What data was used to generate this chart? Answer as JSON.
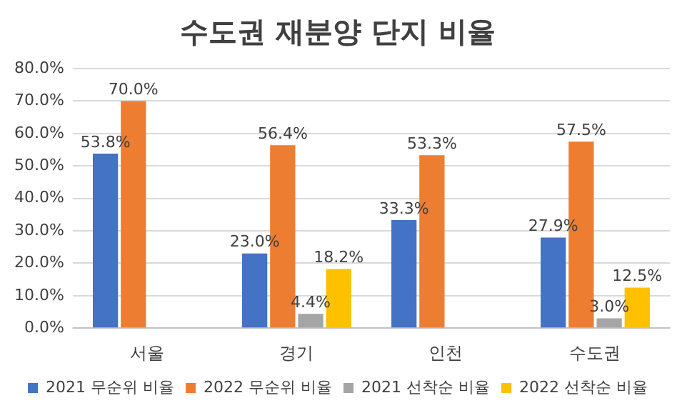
{
  "chart_data": {
    "type": "bar",
    "title": "수도권 재분양 단지 비율",
    "categories": [
      "서울",
      "경기",
      "인천",
      "수도권"
    ],
    "series": [
      {
        "name": "2021 무순위 비율",
        "color": "#4472c4",
        "values": [
          53.8,
          23.0,
          33.3,
          27.9
        ],
        "value_labels": [
          "53.8%",
          "23.0%",
          "33.3%",
          "27.9%"
        ]
      },
      {
        "name": "2022 무순위 비율",
        "color": "#ed7d31",
        "values": [
          70.0,
          56.4,
          53.3,
          57.5
        ],
        "value_labels": [
          "70.0%",
          "56.4%",
          "53.3%",
          "57.5%"
        ]
      },
      {
        "name": "2021 선착순 비율",
        "color": "#a5a5a5",
        "values": [
          null,
          4.4,
          null,
          3.0
        ],
        "value_labels": [
          null,
          "4.4%",
          null,
          "3.0%"
        ]
      },
      {
        "name": "2022 선착순 비율",
        "color": "#ffc000",
        "values": [
          null,
          18.2,
          null,
          12.5
        ],
        "value_labels": [
          null,
          "18.2%",
          null,
          "12.5%"
        ]
      }
    ],
    "ylim": [
      0,
      80
    ],
    "yticks": [
      {
        "value": 0,
        "label": "0.0%"
      },
      {
        "value": 10,
        "label": "10.0%"
      },
      {
        "value": 20,
        "label": "20.0%"
      },
      {
        "value": 30,
        "label": "30.0%"
      },
      {
        "value": 40,
        "label": "40.0%"
      },
      {
        "value": 50,
        "label": "50.0%"
      },
      {
        "value": 60,
        "label": "60.0%"
      },
      {
        "value": 70,
        "label": "70.0%"
      },
      {
        "value": 80,
        "label": "80.0%"
      }
    ],
    "grid": "y",
    "legend": "bottom"
  }
}
